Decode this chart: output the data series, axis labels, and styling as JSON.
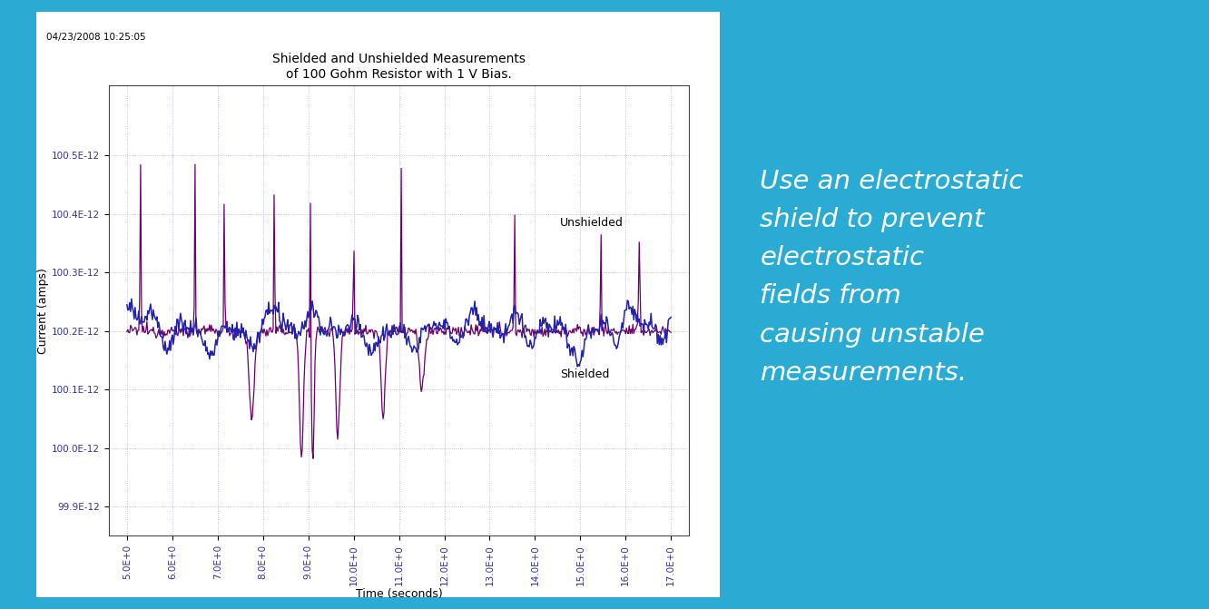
{
  "title": "Shielded and Unshielded Measurements\nof 100 Gohm Resistor with 1 V Bias.",
  "timestamp": "04/23/2008 10:25:05",
  "xlabel": "Time (seconds)",
  "ylabel": "Current (amps)",
  "bg_color": "#29ABD4",
  "plot_bg": "#ffffff",
  "chart_frame_bg": "#ffffff",
  "unshielded_color": "#6B006B",
  "shielded_color": "#2222AA",
  "ylim_min": 9.985e-11,
  "ylim_max": 1.0062e-10,
  "xlim_min": 4.6,
  "xlim_max": 17.4,
  "yticks": [
    9.99e-11,
    1e-10,
    1.001e-10,
    1.002e-10,
    1.003e-10,
    1.004e-10,
    1.005e-10
  ],
  "ytick_labels": [
    "99.9E-12",
    "100.0E-12",
    "100.1E-12",
    "100.2E-12",
    "100.3E-12",
    "100.4E-12",
    "100.5E-12"
  ],
  "xticks": [
    5,
    6,
    7,
    8,
    9,
    10,
    11,
    12,
    13,
    14,
    15,
    16,
    17
  ],
  "xtick_labels": [
    "5.0E+0",
    "6.0E+0",
    "7.0E+0",
    "8.0E+0",
    "9.0E+0",
    "10.0E+0",
    "11.0E+0",
    "12.0E+0",
    "13.0E+0",
    "14.0E+0",
    "15.0E+0",
    "16.0E+0",
    "17.0E+0"
  ],
  "right_text_line1": "Use an electrostatic",
  "right_text_line2": "shield to prevent",
  "right_text_line3": "electrostatic",
  "right_text_line4": "fields from",
  "right_text_line5": "causing unstable",
  "right_text_line6": "measurements.",
  "right_text_color": "#ffffff",
  "label_unshielded": "Unshielded",
  "label_shielded": "Shielded"
}
